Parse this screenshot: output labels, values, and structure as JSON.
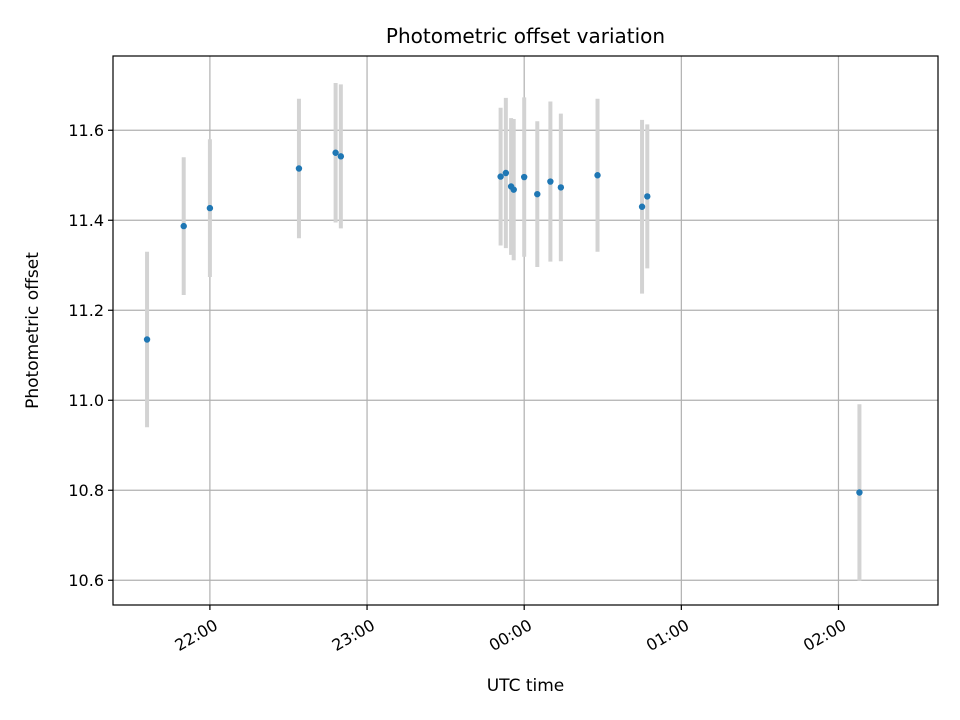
{
  "chart_data": {
    "type": "scatter",
    "title": "Photometric offset variation",
    "xlabel": "UTC time",
    "ylabel": "Photometric offset",
    "x_tick_labels": [
      "22:00",
      "23:00",
      "00:00",
      "01:00",
      "02:00"
    ],
    "x_ticks": [
      "22:00",
      "23:00",
      "24:00",
      "25:00",
      "26:00"
    ],
    "xlim": [
      "21:23",
      "26:38"
    ],
    "ylim": [
      10.545,
      11.765
    ],
    "y_ticks": [
      10.6,
      10.8,
      11.0,
      11.2,
      11.4,
      11.6
    ],
    "y_tick_labels": [
      "10.6",
      "10.8",
      "11.0",
      "11.2",
      "11.4",
      "11.6"
    ],
    "grid": true,
    "points": [
      {
        "x": "21:36",
        "y": 11.135,
        "err": 0.195
      },
      {
        "x": "21:50",
        "y": 11.387,
        "err": 0.153
      },
      {
        "x": "22:00",
        "y": 11.427,
        "err": 0.153
      },
      {
        "x": "22:34",
        "y": 11.515,
        "err": 0.155
      },
      {
        "x": "22:48",
        "y": 11.55,
        "err": 0.155
      },
      {
        "x": "22:50",
        "y": 11.542,
        "err": 0.16
      },
      {
        "x": "23:51",
        "y": 11.497,
        "err": 0.153
      },
      {
        "x": "23:53",
        "y": 11.505,
        "err": 0.167
      },
      {
        "x": "23:55",
        "y": 11.475,
        "err": 0.152
      },
      {
        "x": "23:56",
        "y": 11.468,
        "err": 0.157
      },
      {
        "x": "24:00",
        "y": 11.496,
        "err": 0.177
      },
      {
        "x": "24:05",
        "y": 11.458,
        "err": 0.162
      },
      {
        "x": "24:10",
        "y": 11.486,
        "err": 0.178
      },
      {
        "x": "24:14",
        "y": 11.473,
        "err": 0.164
      },
      {
        "x": "24:28",
        "y": 11.5,
        "err": 0.17
      },
      {
        "x": "24:45",
        "y": 11.43,
        "err": 0.193
      },
      {
        "x": "24:47",
        "y": 11.453,
        "err": 0.16
      },
      {
        "x": "26:08",
        "y": 10.795,
        "err": 0.196
      }
    ],
    "colors": {
      "point": "#1f77b4",
      "errorbar": "#d3d3d3",
      "grid": "#b0b0b0",
      "axis": "#000000"
    }
  }
}
